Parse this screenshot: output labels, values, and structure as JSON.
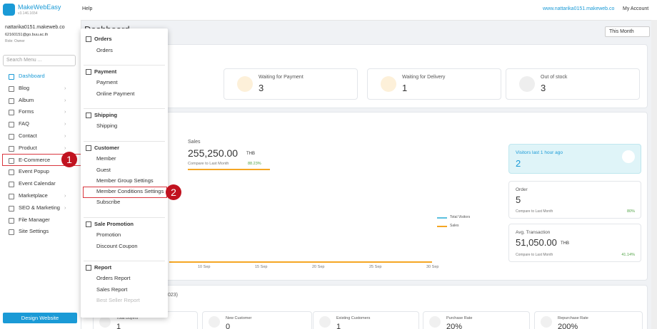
{
  "header": {
    "logo": "MakeWebEasy",
    "version": "v3.146.1654",
    "help": "Help",
    "site_link": "www.nattarika0151.makeweb.co",
    "account": "My Account"
  },
  "user": {
    "site": "nattarika0151.makeweb.co",
    "email": "62160151@go.buu.ac.th",
    "role": "Role: Owner"
  },
  "sidebar": {
    "search": "Search Menu ...",
    "items": [
      "Dashboard",
      "Blog",
      "Album",
      "Forms",
      "FAQ",
      "Contact",
      "Product",
      "E-Commerce",
      "Event Popup",
      "Event Calendar",
      "Marketplace",
      "SEO & Marketing",
      "File Manager",
      "Site Settings"
    ],
    "button": "Design Website"
  },
  "annotations": [
    "1",
    "2"
  ],
  "dropdown": [
    {
      "title": "Orders",
      "items": [
        "Orders"
      ]
    },
    {
      "title": "Payment",
      "items": [
        "Payment",
        "Online Payment"
      ]
    },
    {
      "title": "Shipping",
      "items": [
        "Shipping"
      ]
    },
    {
      "title": "Customer",
      "items": [
        "Member",
        "Guest",
        "Member Group Settings",
        "Member Conditions Settings",
        "Subscribe"
      ]
    },
    {
      "title": "Sale Promotion",
      "items": [
        "Promotion",
        "Discount Coupon"
      ]
    },
    {
      "title": "Report",
      "items": [
        "Orders Report",
        "Sales Report",
        "Best Seller Report"
      ]
    }
  ],
  "main": {
    "title": "Dashboard",
    "period": "This Month",
    "status_cards": [
      {
        "label": "Waiting for Payment",
        "value": "3"
      },
      {
        "label": "Waiting for Delivery",
        "value": "1"
      },
      {
        "label": "Out of stock",
        "value": "3"
      }
    ],
    "sales": {
      "label": "Sales",
      "value": "255,250.00",
      "unit": "THB",
      "compare": "Compare to Last Month",
      "change": "88.23%"
    },
    "chart": {
      "x_labels": [
        "10 Sep",
        "15 Sep",
        "20 Sep",
        "25 Sep",
        "30 Sep"
      ],
      "legend": [
        "Total Visitors",
        "Sales"
      ]
    },
    "visitors": {
      "label": "Visitors last 1 hour ago",
      "value": "2"
    },
    "order": {
      "label": "Order",
      "value": "5",
      "compare": "Compare to Last Month",
      "change": "80%"
    },
    "avg": {
      "label": "Avg. Transaction",
      "value": "51,050.00",
      "unit": "THB",
      "compare": "Compare to Last Month",
      "change": "41.14%"
    },
    "period_suffix": "023)",
    "customer_cards": [
      {
        "label": "Total Buyers",
        "value": "1"
      },
      {
        "label": "New Customer",
        "value": "0"
      },
      {
        "label": "Existing Customers",
        "value": "1"
      },
      {
        "label": "Purchase Rate",
        "value": "20%"
      },
      {
        "label": "Repurchase Rate",
        "value": "200%"
      }
    ]
  }
}
